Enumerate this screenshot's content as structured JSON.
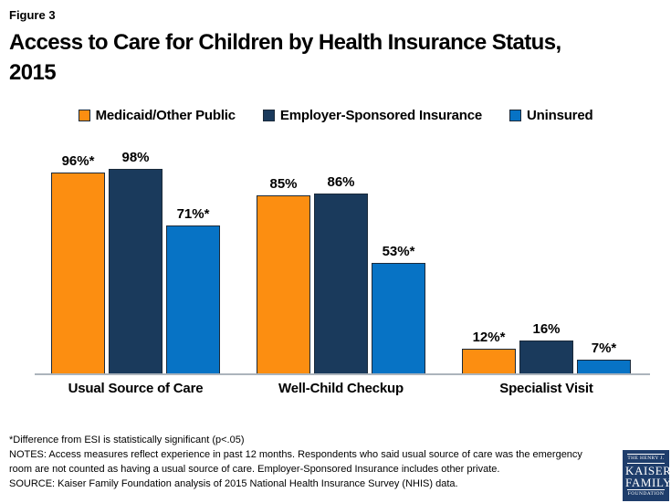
{
  "header": {
    "figure_label": "Figure 3",
    "title_lines": [
      "Access to Care for Children by Health Insurance Status,",
      "2015"
    ]
  },
  "chart_data": {
    "type": "bar",
    "title": "Access to Care for Children by Health Insurance Status, 2015",
    "categories": [
      "Usual Source of Care",
      "Well-Child Checkup",
      "Specialist Visit"
    ],
    "series": [
      {
        "name": "Medicaid/Other Public",
        "color": "#FC8E11",
        "values": [
          96,
          85,
          12
        ],
        "labels": [
          "96%*",
          "85%",
          "12%*"
        ]
      },
      {
        "name": "Employer-Sponsored Insurance",
        "color": "#1A3A5C",
        "values": [
          98,
          86,
          16
        ],
        "labels": [
          "98%",
          "86%",
          "16%"
        ]
      },
      {
        "name": "Uninsured",
        "color": "#0773C5",
        "values": [
          71,
          53,
          7
        ],
        "labels": [
          "71%*",
          "53%*",
          "7%*"
        ]
      }
    ],
    "xlabel": "",
    "ylabel": "",
    "ylim": [
      0,
      100
    ],
    "grid": false,
    "legend_position": "top",
    "annotation": "* denotes statistically significant difference from ESI (p<.05)"
  },
  "footnotes": {
    "lines": [
      "*Difference from ESI is statistically significant (p<.05)",
      "NOTES: Access measures reflect experience in past 12 months.  Respondents  who said usual source of care was the emergency",
      "room are not counted as having a usual source of care. Employer-Sponsored  Insurance includes other private.",
      "SOURCE: Kaiser Family Foundation  analysis of 2015 National Health Insurance Survey (NHIS) data."
    ]
  },
  "logo": {
    "line1": "THE HENRY J.",
    "line2": "KAISER",
    "line3": "FAMILY",
    "line4": "FOUNDATION",
    "bg_color": "#1E3D6B"
  }
}
